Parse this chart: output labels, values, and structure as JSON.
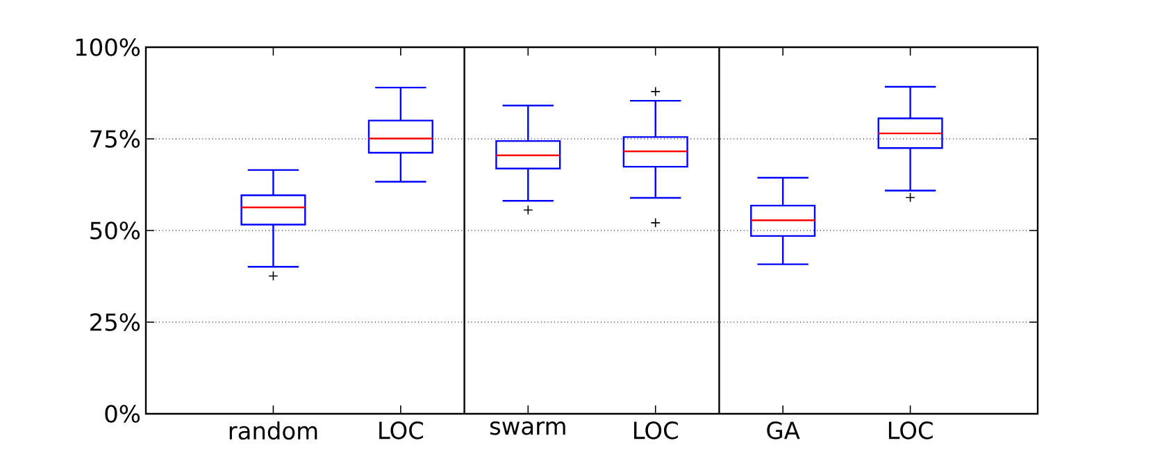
{
  "chart_data": {
    "type": "box",
    "categories": [
      "random",
      "LOC",
      "swarm",
      "LOC",
      "GA",
      "LOC"
    ],
    "series": [
      {
        "color": "#0000ff",
        "boxes": [
          {
            "low": 40.1,
            "q1": 51.6,
            "median": 56.3,
            "q3": 59.6,
            "high": 66.5,
            "outliers": [
              37.6
            ]
          },
          {
            "low": 63.3,
            "q1": 71.2,
            "median": 75.1,
            "q3": 80.0,
            "high": 89.0
          },
          {
            "low": 58.1,
            "q1": 66.9,
            "median": 70.5,
            "q3": 74.4,
            "high": 84.1,
            "outliers": [
              55.6
            ]
          },
          {
            "low": 58.9,
            "q1": 67.4,
            "median": 71.6,
            "q3": 75.5,
            "high": 85.4,
            "outliers": [
              87.9,
              52.1
            ]
          },
          {
            "low": 40.8,
            "q1": 48.5,
            "median": 52.8,
            "q3": 56.8,
            "high": 64.4
          },
          {
            "low": 60.9,
            "q1": 72.5,
            "median": 76.5,
            "q3": 80.6,
            "high": 89.2,
            "outliers": [
              59.0
            ]
          }
        ]
      }
    ],
    "ylim": [
      0,
      100
    ],
    "yticks": [
      {
        "value": 0,
        "label": "0%"
      },
      {
        "value": 25,
        "label": "25%"
      },
      {
        "value": 50,
        "label": "50%"
      },
      {
        "value": 75,
        "label": "75%"
      },
      {
        "value": 100,
        "label": "100%"
      }
    ],
    "grid": "y",
    "marker": "cross"
  }
}
